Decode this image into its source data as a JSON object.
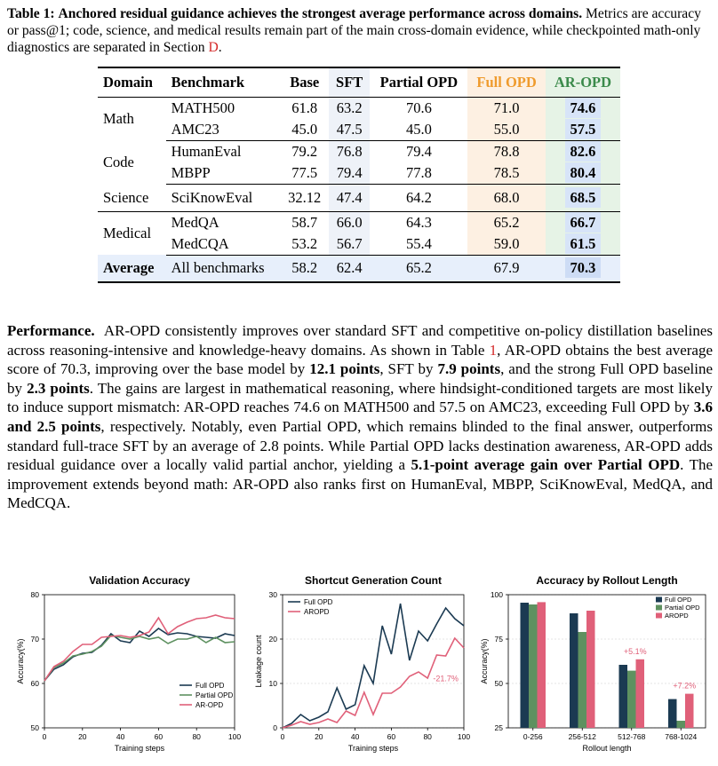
{
  "caption": {
    "label": "Table 1:",
    "bold_title": "Anchored residual guidance achieves the strongest average performance across domains.",
    "text_a": "Metrics are accuracy or pass@1; code, science, and medical results remain part of the main cross-domain evidence, while checkpointed math-only diagnostics are separated in Section",
    "section_ref": "D",
    "text_b": "."
  },
  "table": {
    "headers": [
      "Domain",
      "Benchmark",
      "Base",
      "SFT",
      "Partial OPD",
      "Full OPD",
      "AR-OPD"
    ],
    "groups": [
      {
        "domain": "Math",
        "rows": [
          {
            "benchmark": "MATH500",
            "base": "61.8",
            "sft": "63.2",
            "partial": "70.6",
            "full": "71.0",
            "ar": "74.6"
          },
          {
            "benchmark": "AMC23",
            "base": "45.0",
            "sft": "47.5",
            "partial": "45.0",
            "full": "55.0",
            "ar": "57.5"
          }
        ]
      },
      {
        "domain": "Code",
        "rows": [
          {
            "benchmark": "HumanEval",
            "base": "79.2",
            "sft": "76.8",
            "partial": "79.4",
            "full": "78.8",
            "ar": "82.6"
          },
          {
            "benchmark": "MBPP",
            "base": "77.5",
            "sft": "79.4",
            "partial": "77.8",
            "full": "78.5",
            "ar": "80.4"
          }
        ]
      },
      {
        "domain": "Science",
        "rows": [
          {
            "benchmark": "SciKnowEval",
            "base": "32.12",
            "sft": "47.4",
            "partial": "64.2",
            "full": "68.0",
            "ar": "68.5"
          }
        ]
      },
      {
        "domain": "Medical",
        "rows": [
          {
            "benchmark": "MedQA",
            "base": "58.7",
            "sft": "66.0",
            "partial": "64.3",
            "full": "65.2",
            "ar": "66.7"
          },
          {
            "benchmark": "MedCQA",
            "base": "53.2",
            "sft": "56.7",
            "partial": "55.4",
            "full": "59.0",
            "ar": "61.5"
          }
        ]
      }
    ],
    "average": {
      "domain": "Average",
      "benchmark": "All benchmarks",
      "base": "58.2",
      "sft": "62.4",
      "partial": "65.2",
      "full": "67.9",
      "ar": "70.3"
    }
  },
  "body": {
    "lead": "Performance.",
    "p1": "AR-OPD consistently improves over standard SFT and competitive on-policy distillation baselines across reasoning-intensive and knowledge-heavy domains. As shown in Table",
    "table_ref": "1",
    "p2": ", AR-OPD obtains the best average score of 70.3, improving over the base model by",
    "b1": "12.1 points",
    "p3": ", SFT by",
    "b2": "7.9 points",
    "p4": ", and the strong Full OPD baseline by",
    "b3": "2.3 points",
    "p5": ". The gains are largest in mathematical reasoning, where hindsight-conditioned targets are most likely to induce support mismatch: AR-OPD reaches 74.6 on MATH500 and 57.5 on AMC23, exceeding Full OPD by",
    "b4": "3.6 and 2.5 points",
    "p6": ", respectively. Notably, even Partial OPD, which remains blinded to the final answer, outperforms standard full-trace SFT by an average of 2.8 points. While Partial OPD lacks destination awareness, AR-OPD adds residual guidance over a locally valid partial anchor, yielding a",
    "b5": "5.1-point average gain over Partial OPD",
    "p7": ". The improvement extends beyond math: AR-OPD also ranks first on HumanEval, MBPP, SciKnowEval, MedQA, and MedCQA."
  },
  "colors": {
    "full": "#1b3a52",
    "partial": "#5e9160",
    "ar": "#e06079",
    "annot": "#e06079"
  },
  "chart_data": [
    {
      "type": "line",
      "title": "Validation Accuracy",
      "xlabel": "Training steps",
      "ylabel": "Accuracy(%)",
      "xlim": [
        0,
        100
      ],
      "ylim": [
        50,
        80
      ],
      "xticks": [
        0,
        20,
        40,
        60,
        80,
        100
      ],
      "yticks": [
        50,
        60,
        70,
        80
      ],
      "grid": false,
      "legend": "lower-right",
      "x": [
        0,
        5,
        10,
        15,
        20,
        25,
        30,
        35,
        40,
        45,
        50,
        55,
        60,
        65,
        70,
        75,
        80,
        85,
        90,
        95,
        100
      ],
      "series": [
        {
          "name": "Full OPD",
          "color": "#1b3a52",
          "values": [
            60.6,
            63.2,
            64.2,
            66,
            66.8,
            67,
            68.6,
            71.2,
            69.6,
            69.2,
            71.8,
            70.6,
            72.4,
            71,
            71.4,
            71.2,
            70.6,
            70.4,
            70.2,
            71.2,
            70.8
          ]
        },
        {
          "name": "Partial OPD",
          "color": "#5e9160",
          "values": [
            60.6,
            63.6,
            64.6,
            66.2,
            66.6,
            67.2,
            68.4,
            70.8,
            70.4,
            70,
            70.6,
            70,
            70.4,
            69,
            70,
            70,
            70.6,
            69.2,
            70.4,
            69.2,
            69.4
          ]
        },
        {
          "name": "AR-OPD",
          "color": "#e06079",
          "values": [
            60.6,
            63.8,
            65,
            67.2,
            68.8,
            68.8,
            70.4,
            70.6,
            70.8,
            70.4,
            70.8,
            71.6,
            74.8,
            71.2,
            72.8,
            73.8,
            74.6,
            74.8,
            75.4,
            74.8,
            74.6
          ]
        }
      ]
    },
    {
      "type": "line",
      "title": "Shortcut Generation Count",
      "xlabel": "Training steps",
      "ylabel": "Leakage count",
      "xlim": [
        0,
        100
      ],
      "ylim": [
        0,
        30
      ],
      "xticks": [
        0,
        20,
        40,
        60,
        80,
        100
      ],
      "yticks": [
        0,
        10,
        20,
        30
      ],
      "grid": true,
      "legend": "top-left",
      "annotation": "-21.7%",
      "x": [
        0,
        5,
        10,
        15,
        20,
        25,
        30,
        35,
        40,
        45,
        50,
        55,
        60,
        65,
        70,
        75,
        80,
        85,
        90,
        95,
        100
      ],
      "series": [
        {
          "name": "Full OPD",
          "color": "#1b3a52",
          "values": [
            0,
            1,
            3,
            1.6,
            2.4,
            3.6,
            9,
            4.2,
            5.2,
            14,
            10,
            23,
            16.6,
            28,
            15.2,
            21.8,
            19.6,
            23.4,
            27,
            24.6,
            23
          ]
        },
        {
          "name": "AROPD",
          "color": "#e06079",
          "values": [
            0,
            0.6,
            1.4,
            0.8,
            1.2,
            2,
            1.2,
            3.8,
            2.8,
            8,
            3,
            7.8,
            7.8,
            9.2,
            11.6,
            12.6,
            11.2,
            16.4,
            16.2,
            20.2,
            18
          ]
        }
      ]
    },
    {
      "type": "bar",
      "title": "Accuracy by Rollout Length",
      "xlabel": "Rollout length",
      "ylabel": "Accuracy(%)",
      "ylim": [
        25,
        100
      ],
      "yticks": [
        25,
        50,
        75,
        100
      ],
      "grid": true,
      "legend": "top-right",
      "categories": [
        "0-256",
        "256-512",
        "512-768",
        "768-1024"
      ],
      "series": [
        {
          "name": "Full OPD",
          "color": "#1b3a52",
          "values": [
            95.5,
            89.5,
            60.5,
            41.2
          ]
        },
        {
          "name": "Partial OPD",
          "color": "#5e9160",
          "values": [
            94.5,
            79,
            57.2,
            29
          ]
        },
        {
          "name": "AROPD",
          "color": "#e06079",
          "values": [
            95.8,
            91,
            63.6,
            44.2
          ]
        }
      ],
      "annotations": [
        {
          "category": "512-768",
          "text": "+5.1%"
        },
        {
          "category": "768-1024",
          "text": "+7.2%"
        }
      ]
    }
  ]
}
